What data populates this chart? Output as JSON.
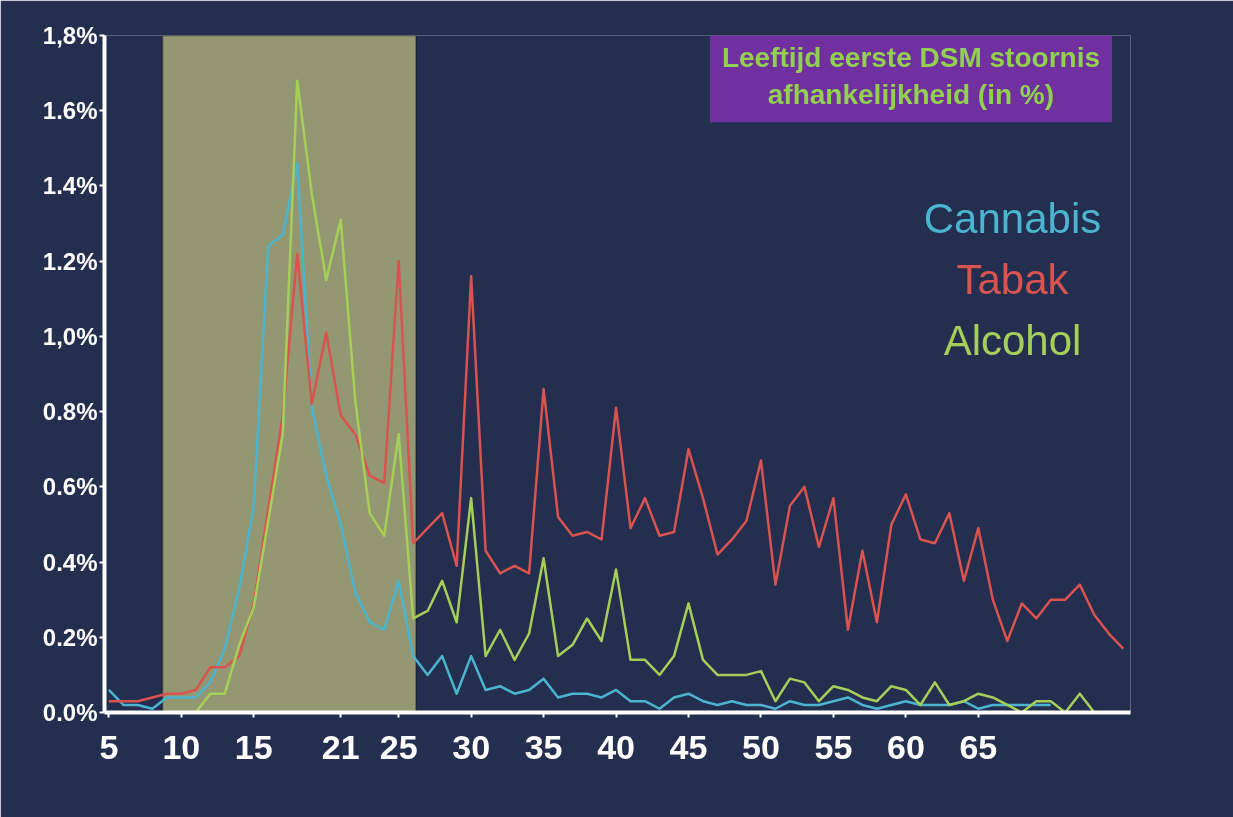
{
  "chart_data": {
    "type": "line",
    "title": "Leeftijd eerste DSM stoornis\nafhankelijkheid (in %)",
    "x": [
      5,
      6,
      7,
      8,
      9,
      10,
      11,
      12,
      13,
      14,
      15,
      16,
      17,
      18,
      19,
      20,
      21,
      22,
      23,
      24,
      25,
      26,
      27,
      28,
      29,
      30,
      31,
      32,
      33,
      34,
      35,
      36,
      37,
      38,
      39,
      40,
      41,
      42,
      43,
      44,
      45,
      46,
      47,
      48,
      49,
      50,
      51,
      52,
      53,
      54,
      55,
      56,
      57,
      58,
      59,
      60,
      61,
      62,
      63,
      64,
      65,
      66,
      67,
      68,
      69,
      70,
      71,
      72,
      73,
      74,
      75
    ],
    "series": [
      {
        "name": "Cannabis",
        "color": "#4bb5d0",
        "values": [
          0.06,
          0.02,
          0.02,
          0.01,
          0.04,
          0.04,
          0.04,
          0.08,
          0.17,
          0.33,
          0.55,
          1.24,
          1.27,
          1.46,
          0.81,
          0.63,
          0.5,
          0.32,
          0.24,
          0.22,
          0.35,
          0.15,
          0.1,
          0.15,
          0.05,
          0.15,
          0.06,
          0.07,
          0.05,
          0.06,
          0.09,
          0.04,
          0.05,
          0.05,
          0.04,
          0.06,
          0.03,
          0.03,
          0.01,
          0.04,
          0.05,
          0.03,
          0.02,
          0.03,
          0.02,
          0.02,
          0.01,
          0.03,
          0.02,
          0.02,
          0.03,
          0.04,
          0.02,
          0.01,
          0.02,
          0.03,
          0.02,
          0.02,
          0.02,
          0.03,
          0.01,
          0.02,
          0.02,
          0.02,
          0.02,
          0.02,
          null,
          null,
          null,
          null,
          null
        ]
      },
      {
        "name": "Tabak",
        "color": "#d9534f",
        "values": [
          0.03,
          0.03,
          0.03,
          0.04,
          0.05,
          0.05,
          0.06,
          0.12,
          0.12,
          0.15,
          0.29,
          0.54,
          0.79,
          1.22,
          0.82,
          1.01,
          0.79,
          0.74,
          0.63,
          0.61,
          1.2,
          0.45,
          0.49,
          0.53,
          0.39,
          1.16,
          0.43,
          0.37,
          0.39,
          0.37,
          0.86,
          0.52,
          0.47,
          0.48,
          0.46,
          0.81,
          0.49,
          0.57,
          0.47,
          0.48,
          0.7,
          0.57,
          0.42,
          0.46,
          0.51,
          0.67,
          0.34,
          0.55,
          0.6,
          0.44,
          0.57,
          0.22,
          0.43,
          0.24,
          0.5,
          0.58,
          0.46,
          0.45,
          0.53,
          0.35,
          0.49,
          0.3,
          0.19,
          0.29,
          0.25,
          0.3,
          0.3,
          0.34,
          0.26,
          0.21,
          0.17
        ]
      },
      {
        "name": "Alcohol",
        "color": "#a6cf5a",
        "values": [
          null,
          null,
          null,
          0,
          0,
          0,
          0,
          0.05,
          0.05,
          0.18,
          0.28,
          0.51,
          0.74,
          1.68,
          1.38,
          1.15,
          1.31,
          0.83,
          0.53,
          0.47,
          0.74,
          0.25,
          0.27,
          0.35,
          0.24,
          0.57,
          0.15,
          0.22,
          0.14,
          0.21,
          0.41,
          0.15,
          0.18,
          0.25,
          0.19,
          0.38,
          0.14,
          0.14,
          0.1,
          0.15,
          0.29,
          0.14,
          0.1,
          0.1,
          0.1,
          0.11,
          0.03,
          0.09,
          0.08,
          0.03,
          0.07,
          0.06,
          0.04,
          0.03,
          0.07,
          0.06,
          0.02,
          0.08,
          0.02,
          0.03,
          0.05,
          0.04,
          0.02,
          0,
          0.03,
          0.03,
          0,
          0.05,
          0,
          0,
          0
        ]
      }
    ],
    "xlim": [
      4.7,
      75.5
    ],
    "ylim": [
      0,
      1.8
    ],
    "xticks": [
      5,
      10,
      15,
      21,
      25,
      30,
      35,
      40,
      45,
      50,
      55,
      60,
      65
    ],
    "yticks": [
      {
        "value": 0,
        "label": "0.0%"
      },
      {
        "value": 0.2,
        "label": "0.2%"
      },
      {
        "value": 0.4,
        "label": "0.4%"
      },
      {
        "value": 0.6,
        "label": "0.6%"
      },
      {
        "value": 0.8,
        "label": "0.8%"
      },
      {
        "value": 1.0,
        "label": "1,0%"
      },
      {
        "value": 1.2,
        "label": "1.2%"
      },
      {
        "value": 1.4,
        "label": "1.4%"
      },
      {
        "value": 1.6,
        "label": "1.6%"
      },
      {
        "value": 1.8,
        "label": "1,8%"
      }
    ],
    "bands": [
      {
        "axis": "x",
        "from": 8.7,
        "to": 26.2,
        "color": "#939872"
      }
    ],
    "legend": "top right",
    "line_style": "solid"
  }
}
